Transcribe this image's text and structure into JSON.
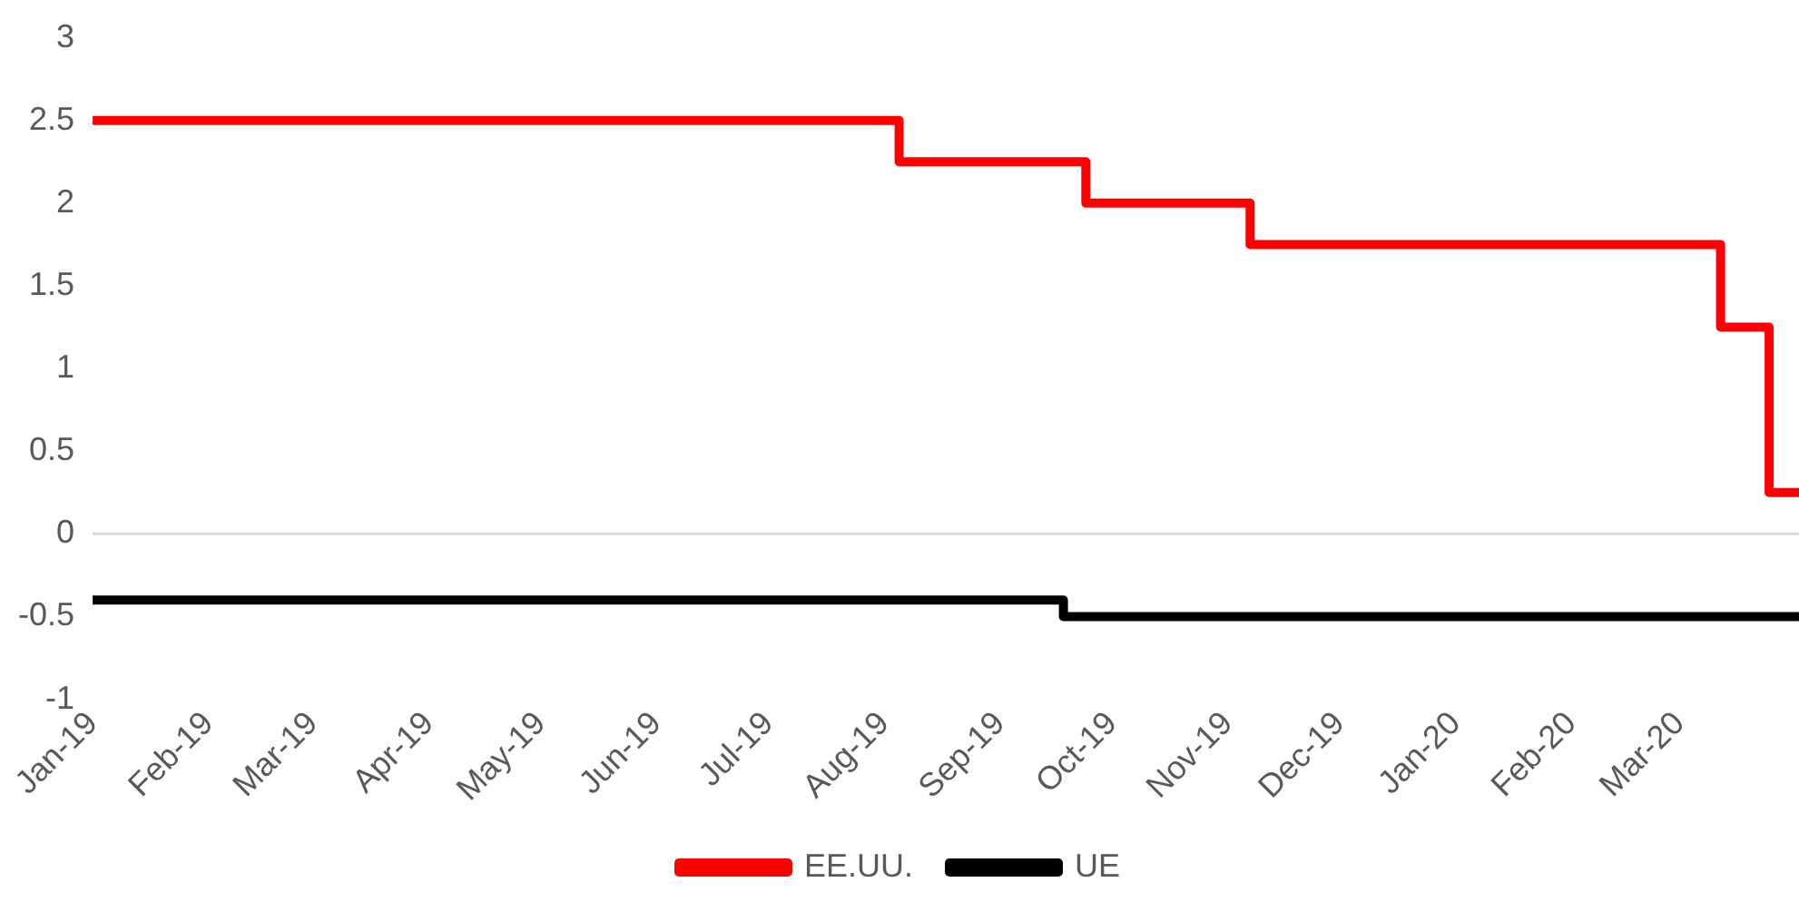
{
  "chart_data": {
    "type": "step",
    "x": [
      "2019-01-01",
      "2019-08-05",
      "2019-09-24",
      "2019-11-07",
      "2020-03-12",
      "2020-03-25",
      "2020-04-02"
    ],
    "series": [
      {
        "name": "EE.UU.",
        "color": "#ff0000",
        "values": [
          2.5,
          2.25,
          2.0,
          1.75,
          1.25,
          0.25,
          0.25
        ]
      },
      {
        "name": "UE",
        "color": "#000000",
        "x": [
          "2019-01-01",
          "2019-09-18",
          "2020-04-02"
        ],
        "values": [
          -0.4,
          -0.5,
          -0.5
        ]
      }
    ],
    "xlim": [
      "2019-01-01",
      "2020-04-02"
    ],
    "xticks": [
      {
        "value": "2019-01-01",
        "label": "Jan-19"
      },
      {
        "value": "2019-02-01",
        "label": "Feb-19"
      },
      {
        "value": "2019-03-01",
        "label": "Mar-19"
      },
      {
        "value": "2019-04-01",
        "label": "Apr-19"
      },
      {
        "value": "2019-05-01",
        "label": "May-19"
      },
      {
        "value": "2019-06-01",
        "label": "Jun-19"
      },
      {
        "value": "2019-07-01",
        "label": "Jul-19"
      },
      {
        "value": "2019-08-01",
        "label": "Aug-19"
      },
      {
        "value": "2019-09-01",
        "label": "Sep-19"
      },
      {
        "value": "2019-10-01",
        "label": "Oct-19"
      },
      {
        "value": "2019-11-01",
        "label": "Nov-19"
      },
      {
        "value": "2019-12-01",
        "label": "Dec-19"
      },
      {
        "value": "2020-01-01",
        "label": "Jan-20"
      },
      {
        "value": "2020-02-01",
        "label": "Feb-20"
      },
      {
        "value": "2020-03-01",
        "label": "Mar-20"
      }
    ],
    "ylim": [
      -1,
      3
    ],
    "yticks": [
      -1,
      -0.5,
      0,
      0.5,
      1,
      1.5,
      2,
      2.5,
      3
    ],
    "ref_lines": [
      {
        "axis": "y",
        "value": 0,
        "color": "#d9d9d9"
      }
    ],
    "grid": false,
    "legend": "bottom",
    "line_style": "solid",
    "marker": "none"
  }
}
